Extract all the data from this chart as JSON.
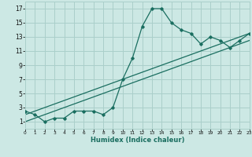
{
  "xlabel": "Humidex (Indice chaleur)",
  "bg_color": "#cce8e4",
  "grid_color": "#aacfca",
  "line_color": "#1a6e60",
  "xlim": [
    0,
    23
  ],
  "ylim": [
    0,
    18
  ],
  "yticks": [
    1,
    3,
    5,
    7,
    9,
    11,
    13,
    15,
    17
  ],
  "xticks": [
    0,
    1,
    2,
    3,
    4,
    5,
    6,
    7,
    8,
    9,
    10,
    11,
    12,
    13,
    14,
    15,
    16,
    17,
    18,
    19,
    20,
    21,
    22,
    23
  ],
  "main_x": [
    0,
    1,
    2,
    3,
    4,
    5,
    6,
    7,
    8,
    9,
    10,
    11,
    12,
    13,
    14,
    15,
    16,
    17,
    18,
    19,
    20,
    21,
    22,
    23
  ],
  "main_y": [
    2.5,
    2.0,
    1.0,
    1.5,
    1.5,
    2.5,
    2.5,
    2.5,
    2.0,
    3.0,
    7.0,
    10.0,
    14.5,
    17.0,
    17.0,
    15.0,
    14.0,
    13.5,
    12.0,
    13.0,
    12.5,
    11.5,
    12.5,
    13.5
  ],
  "line1_x": [
    0,
    23
  ],
  "line1_y": [
    1.0,
    12.5
  ],
  "line2_x": [
    0,
    23
  ],
  "line2_y": [
    2.0,
    13.5
  ],
  "xlabel_fontsize": 6,
  "tick_fontsize_x": 4.2,
  "tick_fontsize_y": 5.5
}
